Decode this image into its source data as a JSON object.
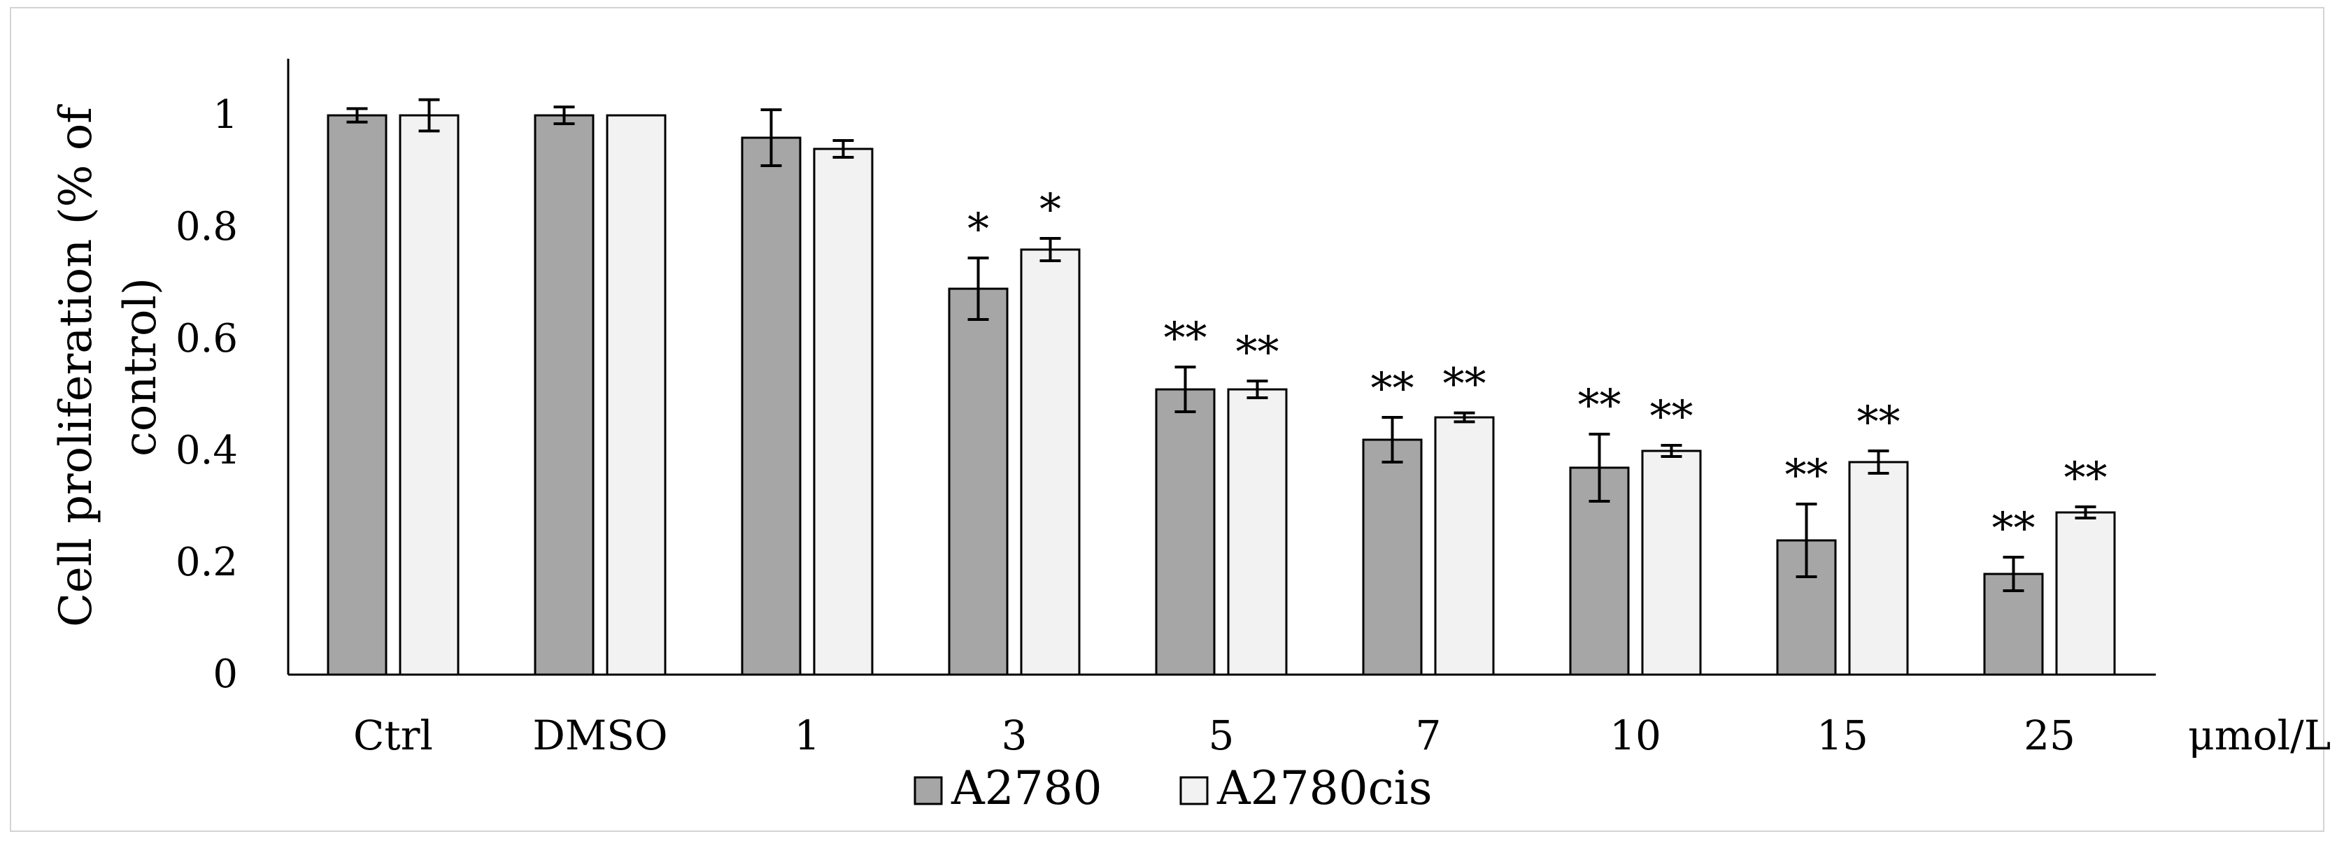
{
  "chart_data": {
    "type": "bar",
    "ylabel_lines": [
      "Cell proliferation (% of",
      "control)"
    ],
    "x_unit": "μmol/L",
    "ylim": [
      0,
      1
    ],
    "yticks": [
      "0",
      "0.2",
      "0.4",
      "0.6",
      "0.8",
      "1"
    ],
    "grid": false,
    "legend_position": "bottom",
    "categories": [
      "Ctrl",
      "DMSO",
      "1",
      "3",
      "5",
      "7",
      "10",
      "15",
      "25"
    ],
    "series": [
      {
        "name": "A2780",
        "color": "#a6a6a6",
        "values": [
          1.0,
          1.0,
          0.96,
          0.69,
          0.51,
          0.42,
          0.37,
          0.24,
          0.18
        ],
        "errors": [
          0.012,
          0.015,
          0.05,
          0.055,
          0.04,
          0.04,
          0.06,
          0.065,
          0.03
        ],
        "significance": [
          "",
          "",
          "",
          "*",
          "**",
          "**",
          "**",
          "**",
          "**"
        ]
      },
      {
        "name": "A2780cis",
        "color": "#f2f2f2",
        "values": [
          1.0,
          1.0,
          0.94,
          0.76,
          0.51,
          0.46,
          0.4,
          0.38,
          0.29
        ],
        "errors": [
          0.028,
          0.0,
          0.015,
          0.02,
          0.015,
          0.008,
          0.01,
          0.02,
          0.01
        ],
        "significance": [
          "",
          "",
          "",
          "*",
          "**",
          "**",
          "**",
          "**",
          "**"
        ]
      }
    ]
  }
}
